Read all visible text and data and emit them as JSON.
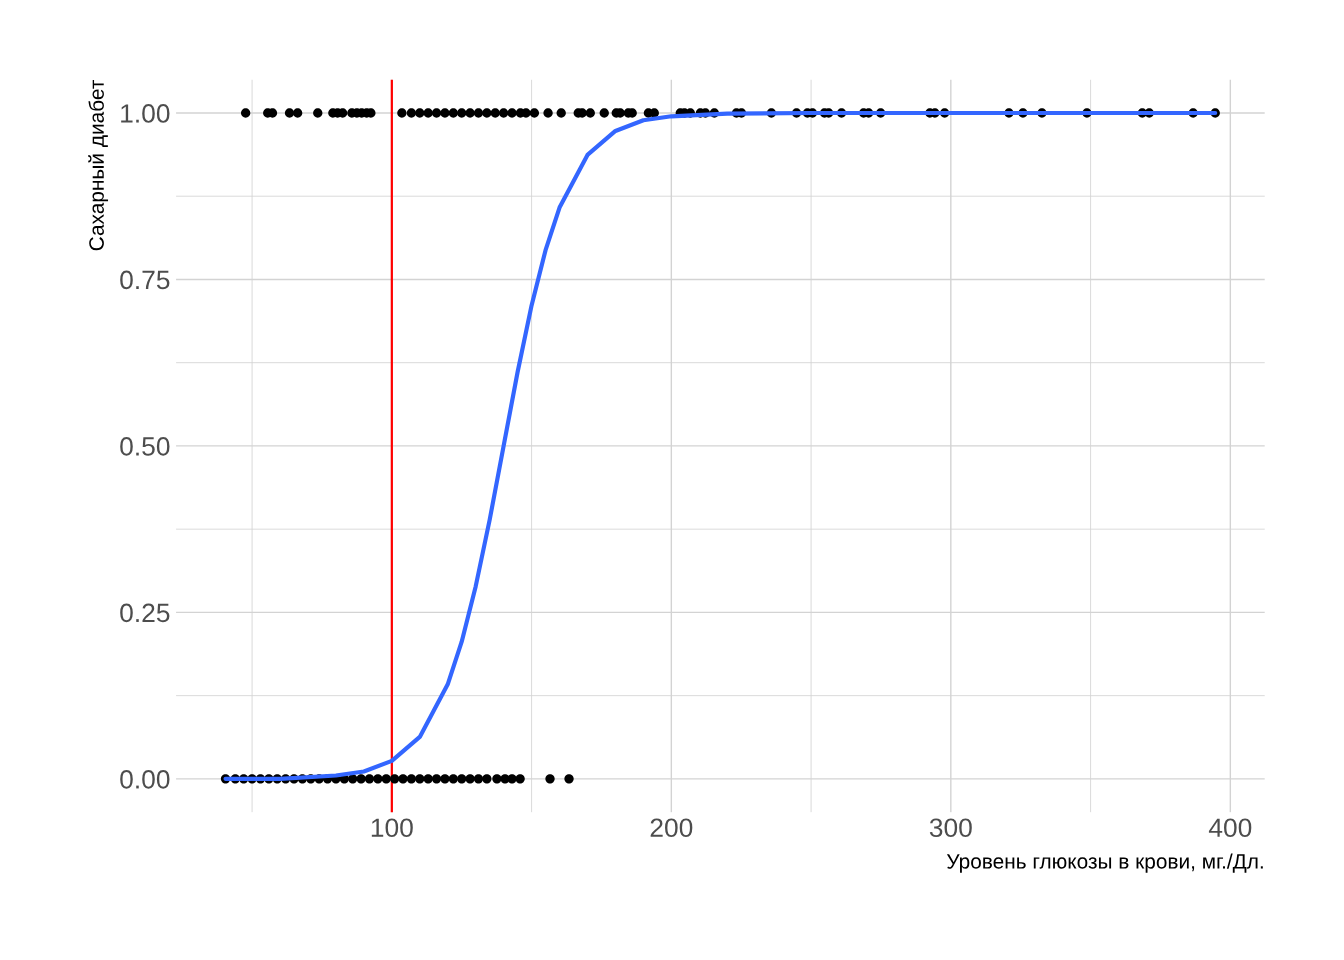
{
  "chart_data": {
    "type": "scatter",
    "xlabel": "Уровень глюкозы в крови, мг./Дл.",
    "ylabel": "Сахарный диабет",
    "xlim": [
      22.8,
      412.3
    ],
    "ylim": [
      -0.05,
      1.05
    ],
    "xticks": [
      100,
      200,
      300,
      400
    ],
    "yticks": [
      {
        "value": 0,
        "label": "0.00"
      },
      {
        "value": 0.25,
        "label": "0.25"
      },
      {
        "value": 0.5,
        "label": "0.50"
      },
      {
        "value": 0.75,
        "label": "0.75"
      },
      {
        "value": 1,
        "label": "1.00"
      }
    ],
    "grid": true,
    "legend": false,
    "marker": "circle",
    "ref_lines": [
      {
        "axis": "x",
        "value": 100,
        "color": "#ff0000",
        "line_style": "solid"
      }
    ],
    "series": [
      {
        "color": "#000000",
        "x": [
          47.7,
          55.6,
          57.3,
          63.4,
          66.3,
          73.5,
          78.9,
          80.6,
          82.4,
          85.7,
          87.5,
          89.2,
          91.0,
          92.5,
          103.6,
          107,
          110,
          113,
          116,
          119,
          122,
          125,
          128,
          131,
          134,
          137,
          140,
          143,
          146,
          148,
          151,
          155.9,
          160.6,
          166.7,
          168.1,
          171,
          176,
          180.3,
          181.7,
          184.6,
          186,
          191.8,
          193.9,
          203.2,
          204.7,
          206.8,
          210.4,
          212.2,
          215.4,
          223.3,
          225.1,
          235.8,
          244.8,
          248.7,
          250.5,
          254.8,
          256.3,
          260.9,
          268.8,
          270.6,
          274.9,
          292.5,
          294.3,
          297.8,
          320.8,
          325.8,
          332.6,
          348.7,
          368.5,
          371,
          386.7,
          394.6
        ],
        "values": [
          1,
          1,
          1,
          1,
          1,
          1,
          1,
          1,
          1,
          1,
          1,
          1,
          1,
          1,
          1,
          1,
          1,
          1,
          1,
          1,
          1,
          1,
          1,
          1,
          1,
          1,
          1,
          1,
          1,
          1,
          1,
          1,
          1,
          1,
          1,
          1,
          1,
          1,
          1,
          1,
          1,
          1,
          1,
          1,
          1,
          1,
          1,
          1,
          1,
          1,
          1,
          1,
          1,
          1,
          1,
          1,
          1,
          1,
          1,
          1,
          1,
          1,
          1,
          1,
          1,
          1,
          1,
          1,
          1,
          1,
          1,
          1
        ]
      },
      {
        "color": "#000000",
        "x": [
          40.5,
          44,
          47,
          50,
          53,
          56,
          59,
          62,
          65,
          68,
          71,
          74,
          77,
          80,
          83,
          86,
          89,
          92,
          95,
          98,
          101,
          104,
          107,
          110,
          113,
          116,
          119,
          122,
          125,
          128,
          131,
          134,
          137.6,
          140.5,
          143,
          145.9,
          156.6,
          163.4
        ],
        "values": [
          0,
          0,
          0,
          0,
          0,
          0,
          0,
          0,
          0,
          0,
          0,
          0,
          0,
          0,
          0,
          0,
          0,
          0,
          0,
          0,
          0,
          0,
          0,
          0,
          0,
          0,
          0,
          0,
          0,
          0,
          0,
          0,
          0,
          0,
          0,
          0,
          0,
          0
        ]
      },
      {
        "type": "line",
        "color": "#3366ff",
        "marker": "none",
        "line_style": "solid",
        "x": [
          40.5,
          60,
          80,
          90,
          100,
          110,
          120,
          125,
          130,
          135,
          140,
          145,
          150,
          155,
          160,
          170,
          180,
          190,
          200,
          220,
          250,
          300,
          350,
          394.6
        ],
        "values": [
          0,
          0,
          0.005,
          0.011,
          0.027,
          0.063,
          0.142,
          0.206,
          0.289,
          0.389,
          0.5,
          0.611,
          0.711,
          0.794,
          0.858,
          0.937,
          0.973,
          0.989,
          0.995,
          0.999,
          1.0,
          1.0,
          1.0,
          1.0
        ]
      }
    ]
  }
}
